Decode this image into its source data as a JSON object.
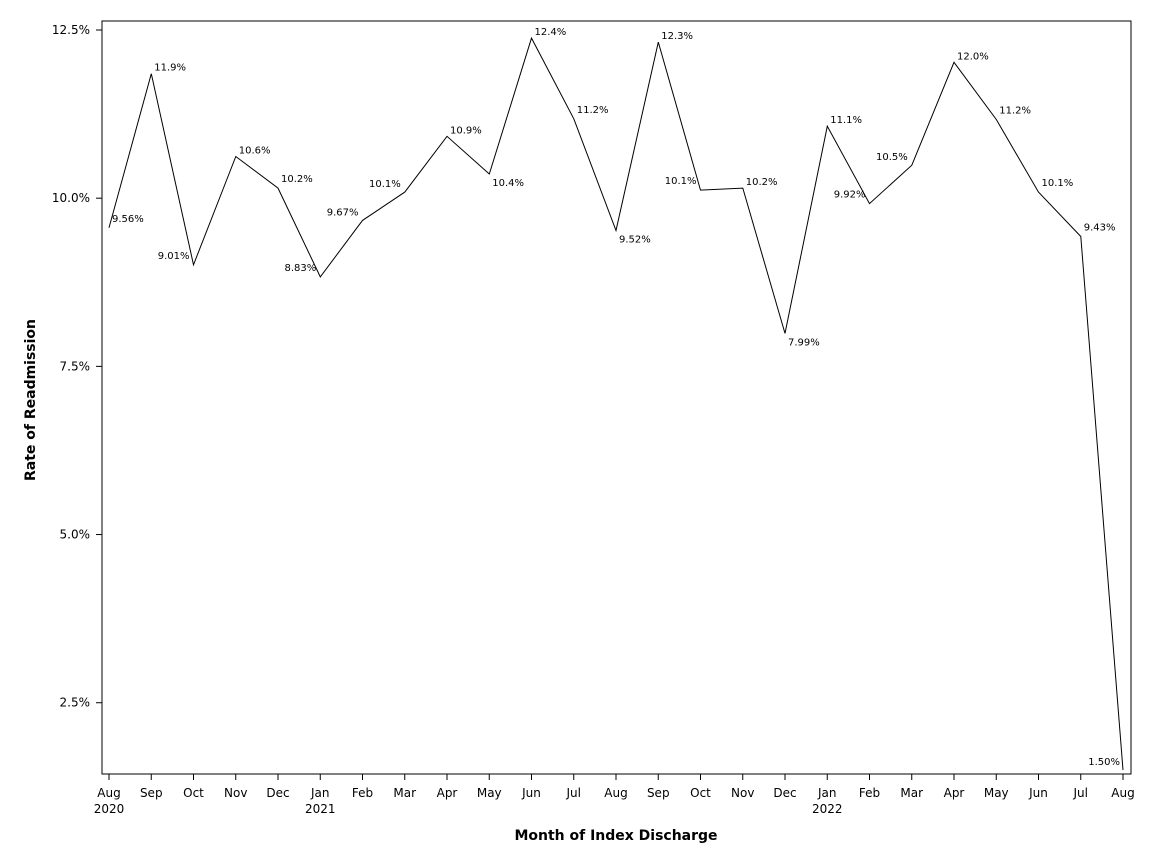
{
  "chart_data": {
    "type": "line",
    "title": "",
    "xlabel": "Month of Index Discharge",
    "ylabel": "Rate of Readmission",
    "ylim": [
      1.5,
      12.5
    ],
    "yticks": [
      2.5,
      5.0,
      7.5,
      10.0,
      12.5
    ],
    "ytick_labels": [
      "2.5%",
      "5.0%",
      "7.5%",
      "10.0%",
      "12.5%"
    ],
    "grid": false,
    "legend": "none",
    "line_color": "#000000",
    "x": [
      "2020-08",
      "2020-09",
      "2020-10",
      "2020-11",
      "2020-12",
      "2021-01",
      "2021-02",
      "2021-03",
      "2021-04",
      "2021-05",
      "2021-06",
      "2021-07",
      "2021-08",
      "2021-09",
      "2021-10",
      "2021-11",
      "2021-12",
      "2022-01",
      "2022-02",
      "2022-03",
      "2022-04",
      "2022-05",
      "2022-06",
      "2022-07",
      "2022-08"
    ],
    "x_month_labels": [
      "Aug",
      "Sep",
      "Oct",
      "Nov",
      "Dec",
      "Jan",
      "Feb",
      "Mar",
      "Apr",
      "May",
      "Jun",
      "Jul",
      "Aug",
      "Sep",
      "Oct",
      "Nov",
      "Dec",
      "Jan",
      "Feb",
      "Mar",
      "Apr",
      "May",
      "Jun",
      "Jul",
      "Aug"
    ],
    "x_year_labels": [
      "2020",
      "",
      "",
      "",
      "",
      "2021",
      "",
      "",
      "",
      "",
      "",
      "",
      "",
      "",
      "",
      "",
      "",
      "2022",
      "",
      "",
      "",
      "",
      "",
      "",
      ""
    ],
    "values": [
      9.56,
      11.85,
      9.01,
      10.62,
      10.15,
      8.83,
      9.67,
      10.09,
      10.92,
      10.36,
      12.38,
      11.18,
      9.52,
      12.32,
      10.12,
      10.15,
      7.99,
      11.07,
      9.92,
      10.49,
      12.02,
      11.17,
      10.09,
      9.43,
      1.5
    ],
    "data_labels": [
      "9.56%",
      "11.9%",
      "9.01%",
      "10.6%",
      "10.2%",
      "8.83%",
      "9.67%",
      "10.1%",
      "10.9%",
      "10.4%",
      "12.4%",
      "11.2%",
      "9.52%",
      "12.3%",
      "10.1%",
      "10.2%",
      "7.99%",
      "11.1%",
      "9.92%",
      "10.5%",
      "12.0%",
      "11.2%",
      "10.1%",
      "9.43%",
      "1.50%"
    ]
  }
}
